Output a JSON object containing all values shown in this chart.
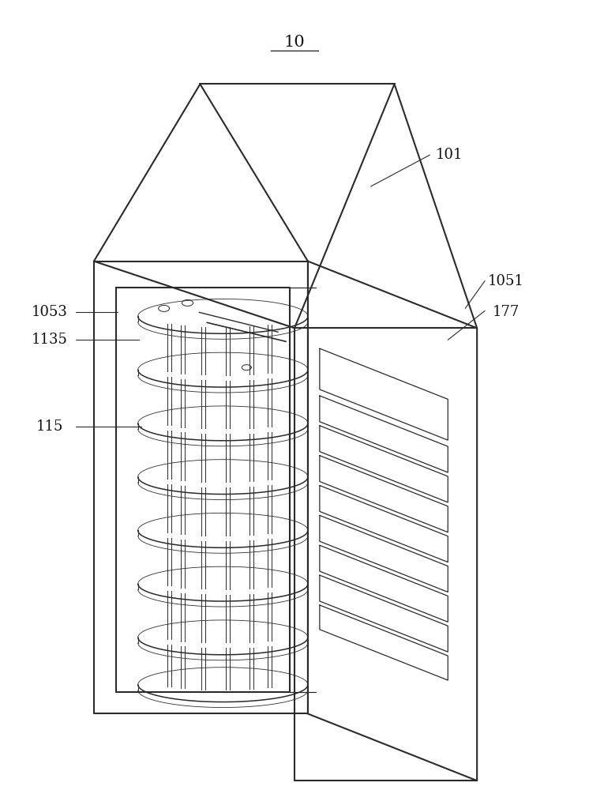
{
  "bg_color": "#ffffff",
  "line_color": "#2a2a2a",
  "lw_main": 1.5,
  "lw_thin": 0.9,
  "lw_annotation": 0.8,
  "title": "10",
  "labels": [
    "10",
    "101",
    "1051",
    "177",
    "1053",
    "1135",
    "115"
  ],
  "font_size": 13,
  "title_font_size": 14
}
